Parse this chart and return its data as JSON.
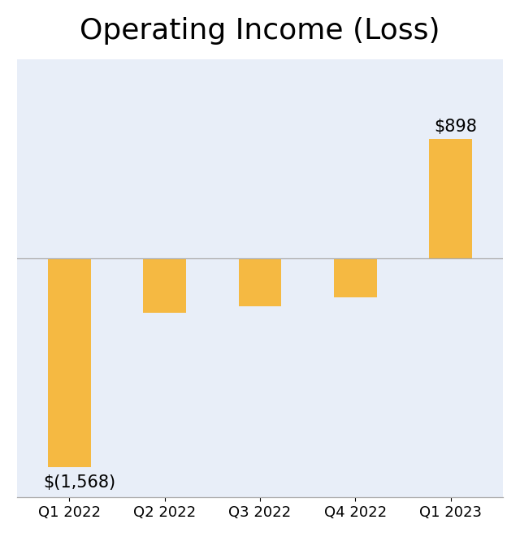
{
  "title": "Operating Income (Loss)",
  "categories": [
    "Q1 2022",
    "Q2 2022",
    "Q3 2022",
    "Q4 2022",
    "Q1 2023"
  ],
  "values": [
    -1568,
    -408,
    -360,
    -294,
    898
  ],
  "bar_color": "#F5B942",
  "background_color": "#E8EEF8",
  "outer_background": "#FFFFFF",
  "title_fontsize": 26,
  "tick_fontsize": 13,
  "label_fontsize": 15,
  "labels": [
    "$(1,568)",
    null,
    null,
    null,
    "$898"
  ],
  "ylim": [
    -1800,
    1500
  ],
  "bar_width": 0.45
}
